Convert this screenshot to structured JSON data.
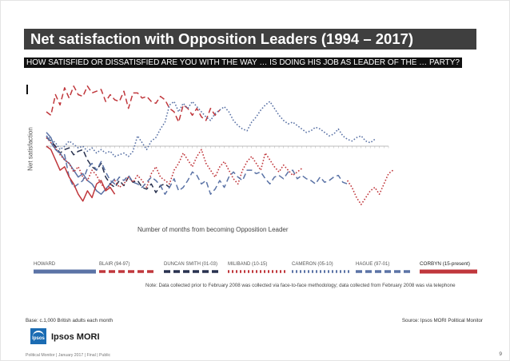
{
  "header": {
    "title": "Net satisfaction with Opposition Leaders (1994 – 2017)",
    "question": "HOW SATISFIED OR DISSATISFIED ARE YOU WITH THE WAY … IS DOING HIS JOB AS LEADER OF THE … PARTY?"
  },
  "chart_data": {
    "type": "line",
    "ylabel": "Net satisfaction",
    "xlabel": "Number of months from becoming Opposition Leader",
    "xlim": [
      0,
      75
    ],
    "ylim": [
      -40,
      40
    ],
    "zero_line": 0,
    "series": [
      {
        "name": "HOWARD",
        "color": "#5b73a6",
        "style": "solid",
        "values": [
          8,
          5,
          -2,
          -4,
          -8,
          -10,
          -14,
          -18,
          -16,
          -20,
          -22,
          -26,
          -28,
          -25,
          -22,
          -19
        ]
      },
      {
        "name": "BLAIR (94-97)",
        "color": "#c0373c",
        "style": "dash",
        "values": [
          20,
          18,
          30,
          24,
          34,
          28,
          35,
          30,
          29,
          35,
          31,
          32,
          33,
          26,
          30,
          27,
          26,
          32,
          22,
          31,
          31,
          28,
          29,
          26,
          25,
          29,
          27,
          22,
          20,
          14,
          24,
          22,
          18,
          22,
          17,
          15,
          22,
          18,
          21
        ]
      },
      {
        "name": "DUNCAN SMITH (01-03)",
        "color": "#28314f",
        "style": "dash",
        "values": [
          5,
          3,
          0,
          -4,
          -2,
          -1,
          -5,
          -3,
          -2,
          -8,
          -12,
          -14,
          -10,
          -18,
          -22,
          -24,
          -20,
          -23,
          -18,
          -21,
          -20,
          -24,
          -25,
          -22,
          -27,
          -23,
          -22,
          -24
        ]
      },
      {
        "name": "MILIBAND (10-15)",
        "color": "#c0373c",
        "style": "dot",
        "values": [
          5,
          2,
          -1,
          -5,
          -8,
          -10,
          -15,
          -12,
          -18,
          -20,
          -14,
          -17,
          -22,
          -25,
          -23,
          -20,
          -24,
          -22,
          -18,
          -21,
          -17,
          -20,
          -24,
          -16,
          -12,
          -18,
          -20,
          -22,
          -14,
          -10,
          -4,
          -8,
          -12,
          -6,
          -2,
          -10,
          -14,
          -18,
          -12,
          -9,
          -14,
          -19,
          -22,
          -14,
          -9,
          -6,
          -10,
          -14,
          -4,
          -8,
          -12,
          -15,
          -11,
          -14,
          -17,
          -15,
          -13
        ]
      },
      {
        "name": "CAMERON (05-10)",
        "color": "#5b73a6",
        "style": "dot",
        "values": [
          6,
          4,
          2,
          -2,
          0,
          3,
          1,
          -1,
          0,
          -3,
          -1,
          -4,
          -2,
          -4,
          -3,
          -6,
          -5,
          -4,
          -6,
          -3,
          6,
          2,
          -2,
          3,
          5,
          10,
          14,
          24,
          26,
          20,
          25,
          22,
          26,
          23,
          20,
          17,
          15,
          19,
          21,
          23,
          20,
          15,
          12,
          10,
          9,
          14,
          17,
          21,
          24,
          26,
          22,
          18,
          15,
          13,
          14,
          12,
          10,
          8,
          9,
          11,
          10,
          8,
          6,
          7,
          10,
          6,
          4,
          3,
          5,
          6,
          3,
          2,
          4
        ]
      },
      {
        "name": "HAGUE (97-01)",
        "color": "#5b73a6",
        "style": "dash",
        "values": [
          6,
          2,
          -2,
          -4,
          -5,
          -18,
          -24,
          -22,
          -20,
          -13,
          -10,
          -14,
          -9,
          -15,
          -20,
          -22,
          -18,
          -20,
          -17,
          -21,
          -22,
          -24,
          -21,
          -18,
          -20,
          -23,
          -28,
          -24,
          -19,
          -26,
          -24,
          -20,
          -15,
          -17,
          -22,
          -20,
          -28,
          -25,
          -20,
          -24,
          -18,
          -15,
          -18,
          -20,
          -14,
          -14,
          -16,
          -15,
          -19,
          -22,
          -18,
          -17,
          -19,
          -15,
          -14,
          -19,
          -17,
          -19,
          -20,
          -22,
          -18,
          -21,
          -20,
          -18,
          -17,
          -21,
          -22
        ]
      },
      {
        "name": "CORBYN (15-present)",
        "color": "#c0373c",
        "style": "solid",
        "values": [
          0,
          -2,
          -8,
          -14,
          -12,
          -18,
          -22,
          -28,
          -32,
          -26,
          -30,
          -22,
          -20,
          -26,
          -24,
          -28
        ]
      }
    ],
    "corbyn_tail": {
      "name": "CORBYN (15-present)",
      "color": "#c0373c",
      "style": "dot",
      "note": "continuation drawn dotted beyond Hague range",
      "values": [
        -20,
        -24,
        -30,
        -34,
        -30,
        -26,
        -24,
        -28,
        -22,
        -16,
        -14
      ]
    }
  },
  "legend": [
    {
      "label": "HOWARD",
      "color": "#5b73a6",
      "style": "solid"
    },
    {
      "label": "BLAIR (94-97)",
      "color": "#c0373c",
      "style": "dash"
    },
    {
      "label": "DUNCAN SMITH (01-03)",
      "color": "#28314f",
      "style": "dash"
    },
    {
      "label": "MILIBAND (10-15)",
      "color": "#c0373c",
      "style": "dot"
    },
    {
      "label": "CAMERON (05-10)",
      "color": "#5b73a6",
      "style": "dot"
    },
    {
      "label": "HAGUE (97-01)",
      "color": "#5b73a6",
      "style": "dash"
    },
    {
      "label": "CORBYN (15-present)",
      "color": "#c0373c",
      "style": "solid"
    }
  ],
  "note": "Note: Data collected prior to February 2008 was collected via face-to-face methodology; data collected from February 2008 was via telephone",
  "footer": {
    "base": "Base: c.1,000 British adults each month",
    "source": "Source: Ipsos MORI Political Monitor",
    "brand": "Ipsos MORI",
    "logo_text": "Ipsos",
    "footer_text": "Political Monitor | January 2017 | Final | Public",
    "page": "9"
  }
}
